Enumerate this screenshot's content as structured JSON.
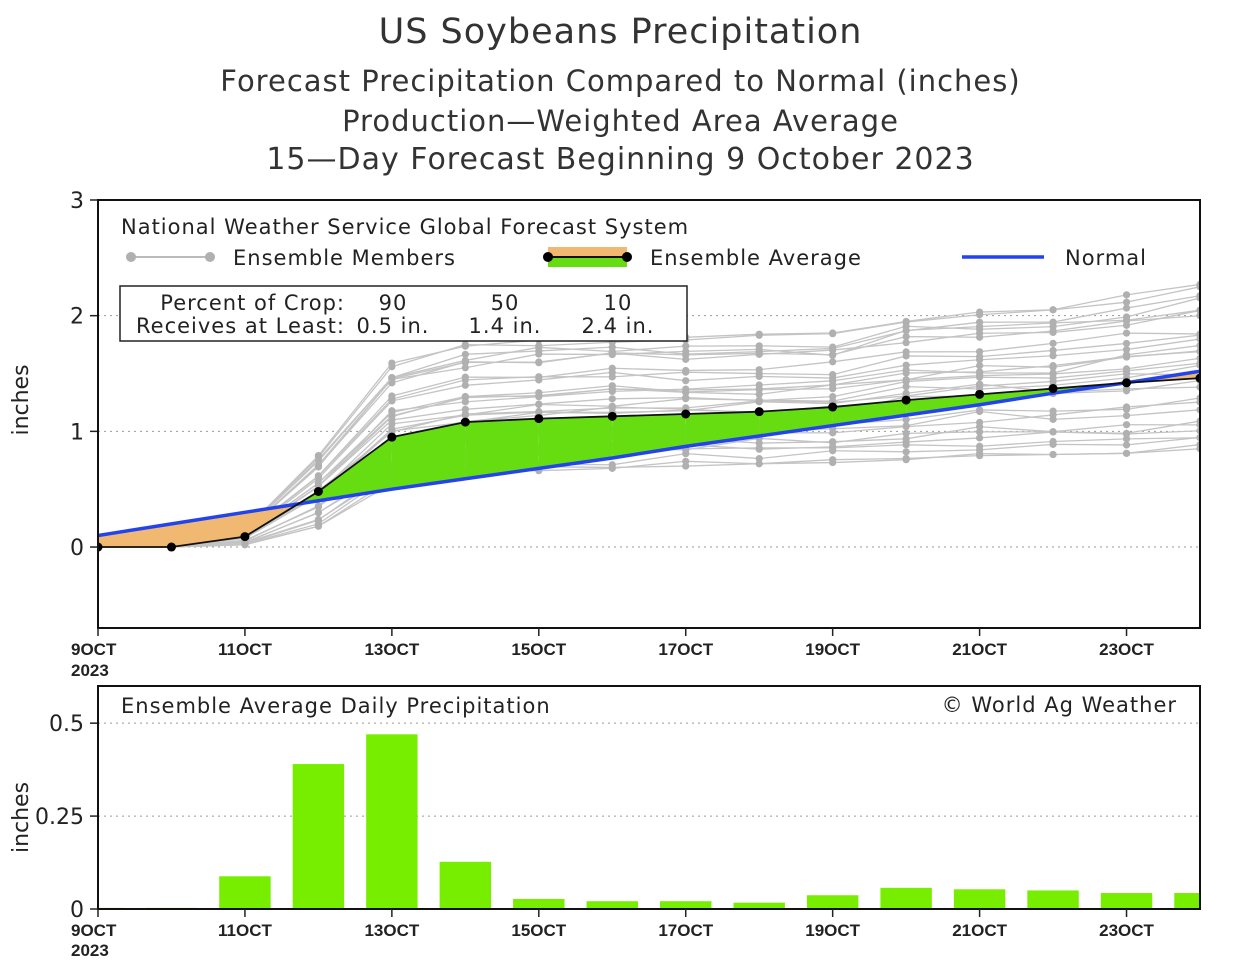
{
  "title": "US Soybeans Precipitation",
  "subtitle1": "Forecast Precipitation Compared to Normal (inches)",
  "subtitle2": "Production—Weighted Area Average",
  "subtitle3": "15—Day Forecast Beginning 9 October 2023",
  "colors": {
    "normal": "#2244ee",
    "average_fill_above": "#66dd11",
    "average_fill_below": "#f0b870",
    "members": "#b0b0b0",
    "bars": "#77ee00"
  },
  "chart_data": [
    {
      "type": "line",
      "title": "Forecast Precipitation Compared to Normal (inches)",
      "ylabel": "inches",
      "ylim": [
        -0.7,
        3
      ],
      "yticks": [
        "0",
        "1",
        "2",
        "3"
      ],
      "ytick_values": [
        0,
        1,
        2,
        3
      ],
      "x": [
        9,
        10,
        11,
        12,
        13,
        14,
        15,
        16,
        17,
        18,
        19,
        20,
        21,
        22,
        23,
        24
      ],
      "xlim": [
        9,
        24
      ],
      "xticks": [
        "9OCT",
        "11OCT",
        "13OCT",
        "15OCT",
        "17OCT",
        "19OCT",
        "21OCT",
        "23OCT"
      ],
      "xtick_values": [
        9,
        11,
        13,
        15,
        17,
        19,
        21,
        23
      ],
      "year_label": "2023",
      "legend_header": "National Weather Service Global Forecast System",
      "legend": [
        "Ensemble Members",
        "Ensemble Average",
        "Normal"
      ],
      "series": [
        {
          "name": "Ensemble Average",
          "values": [
            0.0,
            0.0,
            0.09,
            0.48,
            0.95,
            1.08,
            1.11,
            1.13,
            1.15,
            1.17,
            1.21,
            1.27,
            1.32,
            1.37,
            1.42,
            1.46
          ]
        },
        {
          "name": "Normal",
          "values": [
            0.1,
            0.2,
            0.3,
            0.4,
            0.5,
            0.59,
            0.68,
            0.77,
            0.87,
            0.96,
            1.05,
            1.14,
            1.23,
            1.33,
            1.42,
            1.52
          ]
        }
      ],
      "members_min": [
        0.0,
        0.0,
        0.02,
        0.18,
        0.55,
        0.62,
        0.66,
        0.68,
        0.7,
        0.72,
        0.73,
        0.75,
        0.79,
        0.8,
        0.81,
        0.83
      ],
      "members_max": [
        0.0,
        0.0,
        0.15,
        0.8,
        1.59,
        1.75,
        1.8,
        1.83,
        1.83,
        1.84,
        1.85,
        2.0,
        2.05,
        2.07,
        2.18,
        2.27
      ],
      "percent_table": {
        "row1_label": "Percent of Crop:",
        "row2_label": "Receives at Least:",
        "percents": [
          "90",
          "50",
          "10"
        ],
        "amounts": [
          "0.5 in.",
          "1.4 in.",
          "2.4 in."
        ]
      }
    },
    {
      "type": "bar",
      "title": "Ensemble Average Daily Precipitation",
      "ylabel": "inches",
      "ylim": [
        0,
        0.6
      ],
      "yticks": [
        "0",
        "0.25",
        "0.5"
      ],
      "ytick_values": [
        0,
        0.25,
        0.5
      ],
      "x": [
        9,
        10,
        11,
        12,
        13,
        14,
        15,
        16,
        17,
        18,
        19,
        20,
        21,
        22,
        23,
        24
      ],
      "values": [
        0.003,
        0.003,
        0.088,
        0.39,
        0.47,
        0.127,
        0.027,
        0.021,
        0.021,
        0.017,
        0.037,
        0.057,
        0.053,
        0.05,
        0.043,
        0.043
      ],
      "xticks": [
        "9OCT",
        "11OCT",
        "13OCT",
        "15OCT",
        "17OCT",
        "19OCT",
        "21OCT",
        "23OCT"
      ],
      "xtick_values": [
        9,
        11,
        13,
        15,
        17,
        19,
        21,
        23
      ],
      "year_label": "2023",
      "copyright": "© World Ag Weather"
    }
  ]
}
